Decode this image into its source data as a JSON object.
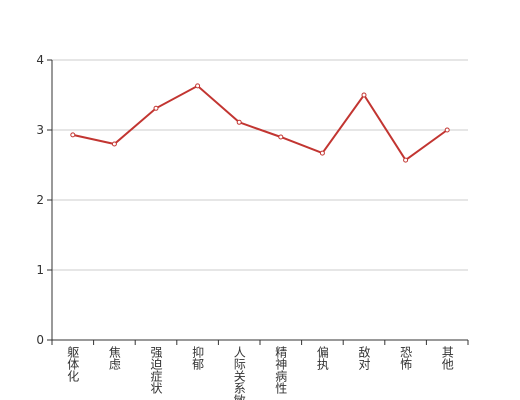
{
  "chart_data": {
    "type": "line",
    "categories": [
      "躯体化",
      "焦虑",
      "强迫症状",
      "抑郁",
      "人际关系敏感",
      "精神病性",
      "偏执",
      "敌对",
      "恐怖",
      "其他"
    ],
    "values": [
      2.93,
      2.8,
      3.31,
      3.63,
      3.11,
      2.9,
      2.67,
      3.5,
      2.57,
      3.0
    ],
    "color": "#c23531",
    "ylim": [
      0,
      4
    ],
    "yticks": [
      0,
      1,
      2,
      3,
      4
    ],
    "grid": true
  }
}
